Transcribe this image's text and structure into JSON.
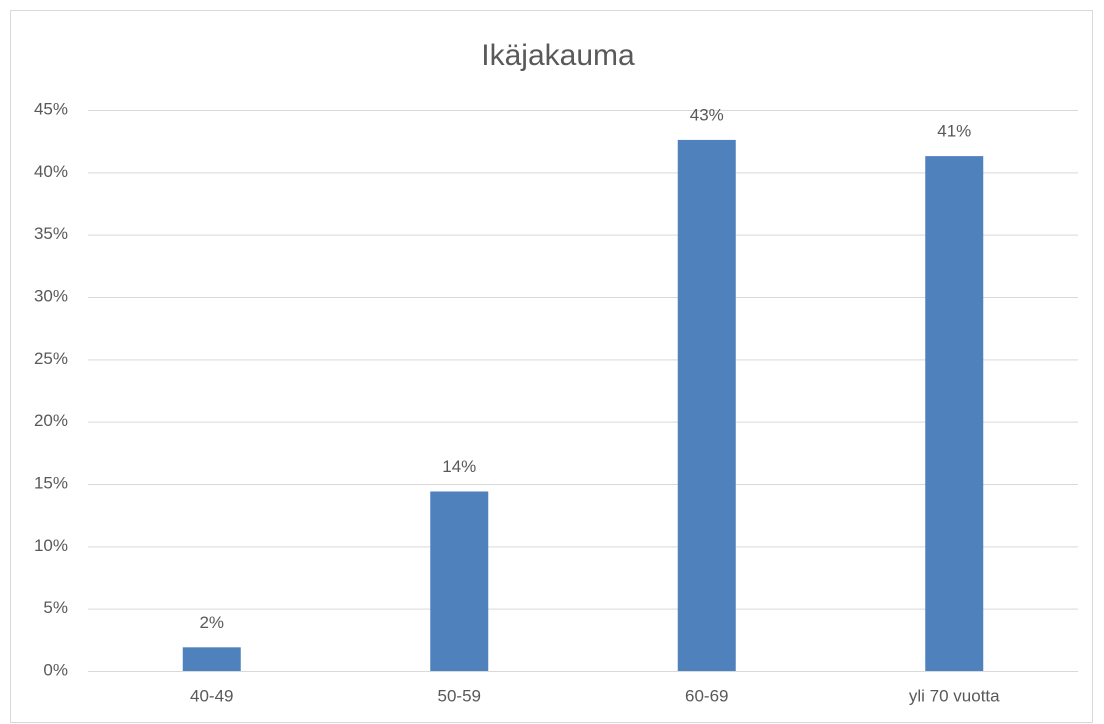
{
  "chart_data": {
    "type": "bar",
    "title": "Ikäjakauma",
    "categories": [
      "40-49",
      "50-59",
      "60-69",
      "yli 70 vuotta"
    ],
    "values": [
      1.9,
      14.4,
      42.6,
      41.3
    ],
    "value_labels": [
      "2%",
      "14%",
      "43%",
      "41%"
    ],
    "color": "#4f81bd",
    "ylim": [
      0,
      45
    ],
    "yticks": [
      {
        "value": 0,
        "label": "0%"
      },
      {
        "value": 5,
        "label": "5%"
      },
      {
        "value": 10,
        "label": "10%"
      },
      {
        "value": 15,
        "label": "15%"
      },
      {
        "value": 20,
        "label": "20%"
      },
      {
        "value": 25,
        "label": "25%"
      },
      {
        "value": 30,
        "label": "30%"
      },
      {
        "value": 35,
        "label": "35%"
      },
      {
        "value": 40,
        "label": "40%"
      },
      {
        "value": 45,
        "label": "45%"
      }
    ],
    "grid": true
  }
}
